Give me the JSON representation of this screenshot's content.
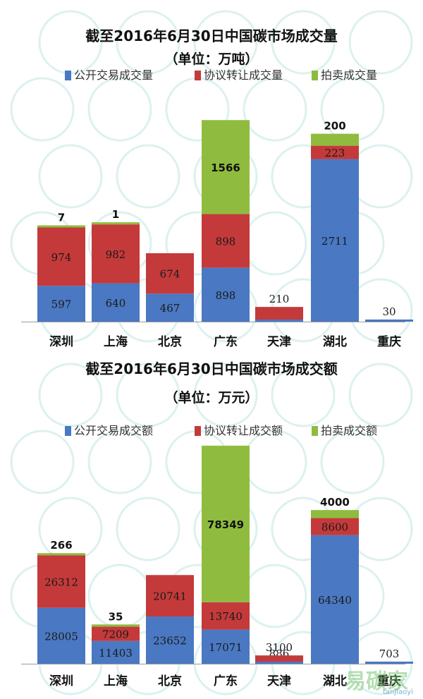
{
  "chart_data": [
    {
      "type": "bar",
      "stacked": true,
      "title": "截至2016年6月30日中国碳市场成交量",
      "subtitle": "（单位：万吨）",
      "categories": [
        "深圳",
        "上海",
        "北京",
        "广东",
        "天津",
        "湖北",
        "重庆"
      ],
      "series": [
        {
          "name": "公开交易成交量",
          "color": "#4a78c2",
          "values": [
            597,
            640,
            467,
            898,
            32,
            2711,
            30
          ]
        },
        {
          "name": "协议转让成交量",
          "color": "#c43a3a",
          "values": [
            974,
            982,
            674,
            898,
            210,
            223,
            0
          ]
        },
        {
          "name": "拍卖成交量",
          "color": "#8fbc3f",
          "values": [
            7,
            1,
            0,
            1566,
            0,
            200,
            0
          ]
        }
      ],
      "legend": "top",
      "ylim": [
        0,
        3400
      ]
    },
    {
      "type": "bar",
      "stacked": true,
      "title": "截至2016年6月30日中国碳市场成交额",
      "subtitle": "（单位：万元）",
      "categories": [
        "深圳",
        "上海",
        "北京",
        "广东",
        "天津",
        "湖北",
        "重庆"
      ],
      "series": [
        {
          "name": "公开交易成交额",
          "color": "#4a78c2",
          "values": [
            28005,
            11403,
            23652,
            17071,
            886,
            64340,
            703
          ]
        },
        {
          "name": "协议转让成交额",
          "color": "#c43a3a",
          "values": [
            26312,
            7209,
            20741,
            13740,
            3100,
            8600,
            0
          ]
        },
        {
          "name": "拍卖成交额",
          "color": "#8fbc3f",
          "values": [
            266,
            35,
            0,
            78349,
            0,
            4000,
            0
          ]
        }
      ],
      "legend": "top",
      "ylim": [
        0,
        109160
      ]
    }
  ],
  "watermark": {
    "brand": "易碳家",
    "url": "tanjiaoyi"
  }
}
